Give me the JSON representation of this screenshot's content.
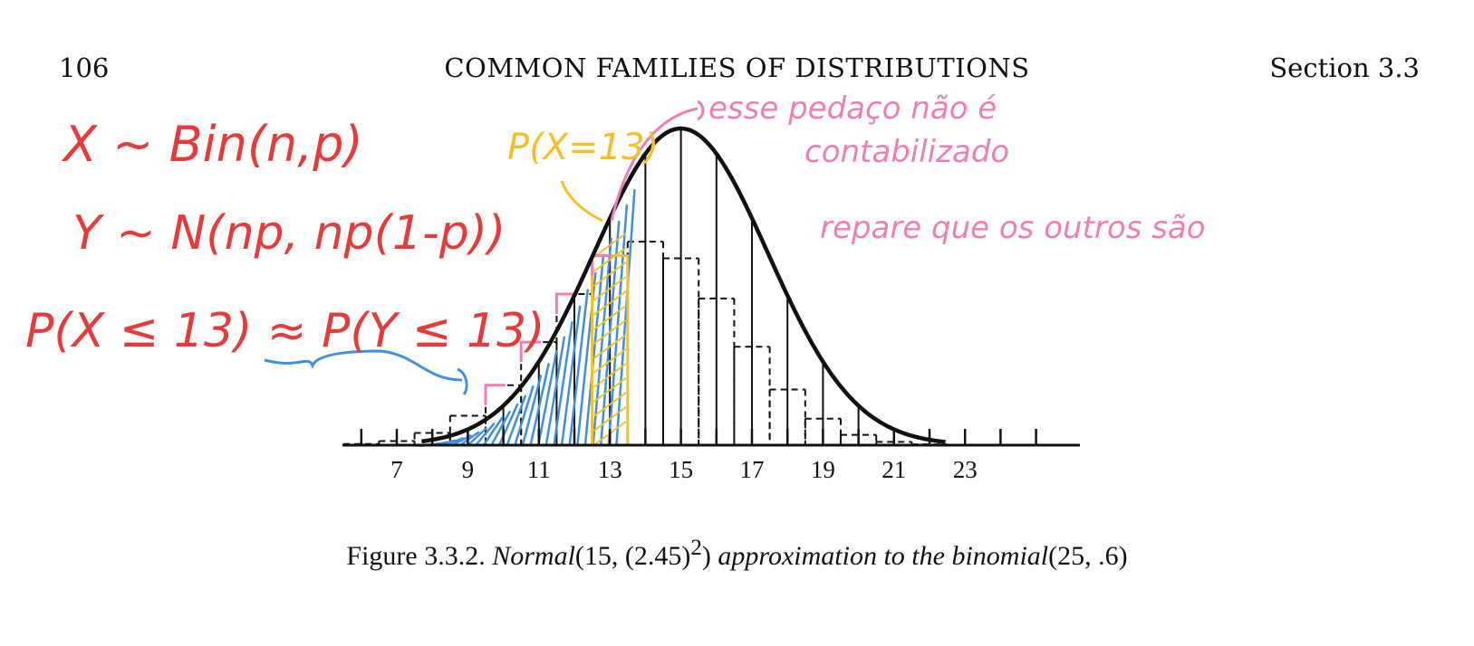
{
  "page": {
    "number": "106",
    "running_title": "COMMON FAMILIES OF DISTRIBUTIONS",
    "section": "Section 3.3"
  },
  "caption": {
    "prefix": "Figure 3.3.2. ",
    "dist1": "Normal",
    "params1": "(15, (2.45)",
    "sup": "2",
    "close1": ")",
    "mid": " approximation to the binomial",
    "params2": "(25, .6)"
  },
  "annotations": {
    "line1": "X ~ Bin(n,p)",
    "line2": "Y ~ N(np, np(1-p))",
    "line3": "P(X ≤ 13) ≈ P(Y ≤ 13)",
    "yellow_label": "P(X=13)",
    "pink_note1": "esse pedaço não é",
    "pink_note2": "contabilizado",
    "pink_note3": "repare que os outros são"
  },
  "colors": {
    "ink_red": "#e53b3b",
    "ink_pink": "#ee7eb4",
    "ink_yellow": "#f3c02c",
    "ink_blue": "#3f8fe0",
    "print": "#111111"
  },
  "chart_data": {
    "type": "bar",
    "description_note": "",
    "x_ticks": [
      "7",
      "9",
      "11",
      "13",
      "15",
      "17",
      "19",
      "21",
      "23"
    ],
    "x": [
      5,
      6,
      7,
      8,
      9,
      10,
      11,
      12,
      13,
      14,
      15,
      16,
      17,
      18,
      19,
      20,
      21,
      22,
      23,
      24,
      25
    ],
    "values": [
      0.0002,
      0.0006,
      0.0021,
      0.0063,
      0.0151,
      0.0308,
      0.053,
      0.0777,
      0.0974,
      0.1046,
      0.0961,
      0.0754,
      0.0506,
      0.0286,
      0.0136,
      0.0053,
      0.0017,
      0.0004,
      0.0001,
      0.0,
      0.0
    ],
    "normal": {
      "mean": 15,
      "sd": 2.45
    },
    "xlim": [
      4.5,
      24.5
    ],
    "highlight_bar": 13,
    "shaded_upto": 13.5
  }
}
